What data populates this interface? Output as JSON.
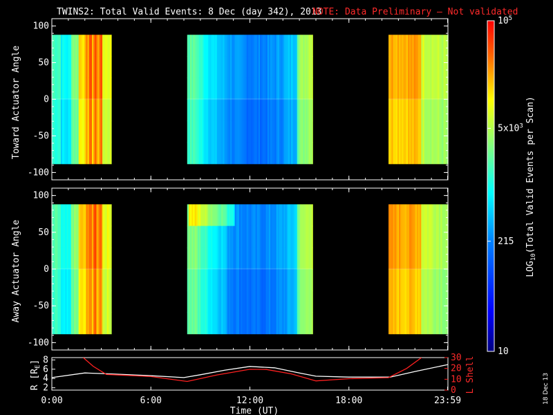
{
  "header": {
    "title": "TWINS2: Total Valid Events:  8 Dec (day 342), 2013",
    "note": "NOTE: Data Preliminary – Not validated"
  },
  "chart_data": [
    {
      "type": "heatmap",
      "panel": "top",
      "ylabel": "Toward Actuator Angle",
      "ylim": [
        -110,
        110
      ],
      "yticks": [
        "100",
        "50",
        "0",
        "-50",
        "-100"
      ],
      "yticks_values": [
        100,
        50,
        0,
        -50,
        -100
      ],
      "angle_range": [
        -88,
        88
      ],
      "data_blocks_hours": [
        [
          0.0,
          3.6
        ],
        [
          8.2,
          15.8
        ],
        [
          20.4,
          24.0
        ]
      ]
    },
    {
      "type": "heatmap",
      "panel": "bottom",
      "ylabel": "Away Actuator Angle",
      "ylim": [
        -110,
        110
      ],
      "yticks": [
        "100",
        "50",
        "0",
        "-50",
        "-100"
      ],
      "yticks_values": [
        100,
        50,
        0,
        -50,
        -100
      ],
      "angle_range": [
        -88,
        88
      ],
      "data_blocks_hours": [
        [
          0.0,
          3.6
        ],
        [
          8.2,
          15.8
        ],
        [
          20.4,
          24.0
        ]
      ]
    },
    {
      "type": "line",
      "panel": "orbit",
      "xlabel": "Time (UT)",
      "xlim": [
        0,
        24
      ],
      "xticks": [
        "0:00",
        "6:00",
        "12:00",
        "18:00",
        "23:59"
      ],
      "xticks_values": [
        0,
        6,
        12,
        18,
        23.98
      ],
      "ylabel_left": "R [R",
      "ylabel_left_sub": "E",
      "ylabel_left_end": "]",
      "ylim_left": [
        1.5,
        8.5
      ],
      "yticks_left": [
        "8",
        "6",
        "4",
        "2"
      ],
      "yticks_left_values": [
        8,
        6,
        4,
        2
      ],
      "ylabel_right": "L Shell",
      "ylim_right": [
        0,
        30
      ],
      "yticks_right": [
        "30",
        "20",
        "10",
        "0"
      ],
      "yticks_right_values": [
        30,
        20,
        10,
        0
      ],
      "series": [
        {
          "name": "R",
          "color": "#ffffff",
          "x": [
            0,
            2,
            3.5,
            6,
            8,
            9,
            10.5,
            12,
            13.5,
            15,
            16,
            18,
            20.5,
            22,
            24
          ],
          "values": [
            4.2,
            5.2,
            5.0,
            4.6,
            4.2,
            4.8,
            5.8,
            6.6,
            6.3,
            5.2,
            4.5,
            4.3,
            4.3,
            5.5,
            7.0
          ]
        },
        {
          "name": "L Shell",
          "color": "#ff2020",
          "x": [
            1.9,
            2.5,
            3.3,
            6,
            8.2,
            10,
            12,
            13,
            14.5,
            16,
            18,
            20.4,
            21.5,
            22.4
          ],
          "values": [
            30,
            22,
            14.5,
            12.5,
            8.0,
            14,
            19.2,
            19.0,
            15,
            8.5,
            10.5,
            11.5,
            20,
            30
          ]
        }
      ]
    }
  ],
  "colorbar": {
    "label": "LOG",
    "label_sub": "10",
    "label_rest": "(Total Valid Events per Scan)",
    "ticks": [
      {
        "base": "10",
        "sup": "5",
        "value": 100000
      },
      {
        "base": "5x10",
        "sup": "3",
        "value": 5000
      },
      {
        "base": "215",
        "sup": "",
        "value": 215
      },
      {
        "base": "10",
        "sup": "",
        "value": 10
      }
    ],
    "min_value": 10,
    "max_value": 100000
  },
  "side_text": "18 Dec 13",
  "colors": {
    "background": "#000000",
    "axes": "#ffffff",
    "note": "#ff2a2a",
    "lshell": "#ff2020"
  }
}
